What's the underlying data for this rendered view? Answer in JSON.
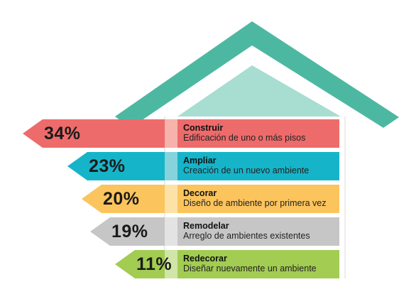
{
  "segments": [
    {
      "percent": "34%",
      "title": "Construir",
      "description": "Edificación de uno o más pisos",
      "color": "#ee6b6b",
      "tint": "#f6b3ab"
    },
    {
      "percent": "23%",
      "title": "Ampliar",
      "description": "Creación de un nuevo ambiente",
      "color": "#15b4c9",
      "tint": "#86d3dc"
    },
    {
      "percent": "20%",
      "title": "Decorar",
      "description": "Diseño de ambiente por primera vez",
      "color": "#fbc45d",
      "tint": "#fde2a8"
    },
    {
      "percent": "19%",
      "title": "Remodelar",
      "description": "Arreglo de ambientes existentes",
      "color": "#c6c6c6",
      "tint": "#e3e3e3"
    },
    {
      "percent": "11%",
      "title": "Redecorar",
      "description": "Diseñar nuevamente un ambiente",
      "color": "#a2cc52",
      "tint": "#d1e6a6"
    }
  ],
  "colors": {
    "roof": "#4db8a1",
    "gable": "#a8ddd1",
    "house_body": "#ffffff",
    "text": "#1a1a1a"
  }
}
